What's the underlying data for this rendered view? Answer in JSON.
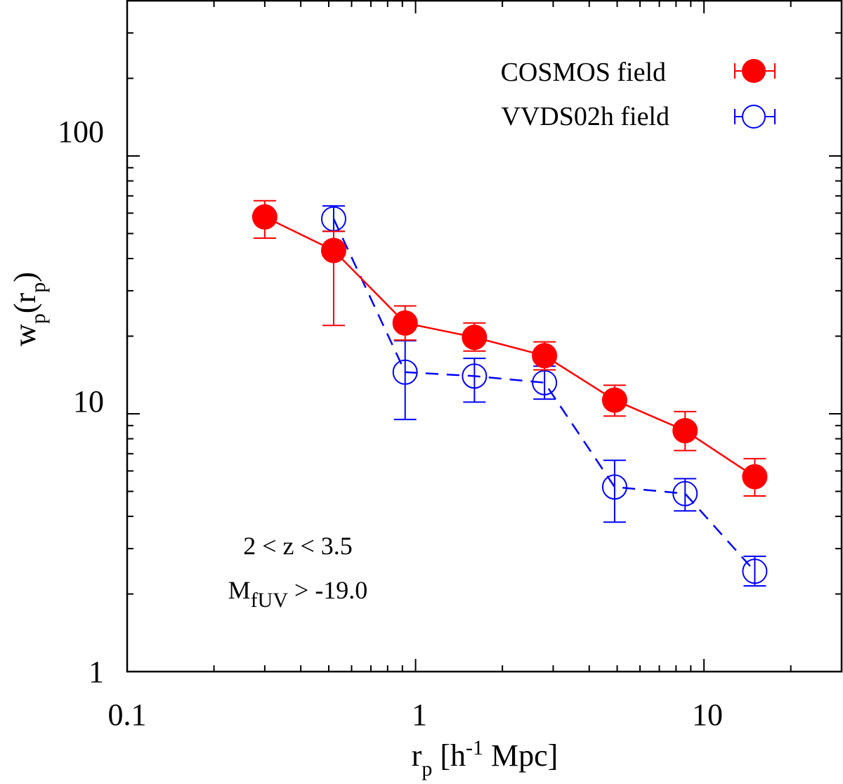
{
  "chart_data": {
    "type": "scatter",
    "x_scale": "log",
    "y_scale": "log",
    "xlim": [
      0.1,
      30
    ],
    "ylim": [
      1,
      400
    ],
    "x_ticks": [
      0.1,
      1,
      10
    ],
    "x_tick_labels": [
      "0.1",
      "1",
      "10"
    ],
    "y_ticks": [
      1,
      10,
      100
    ],
    "y_tick_labels": [
      "1",
      "10",
      "100"
    ],
    "xlabel": {
      "main": "r",
      "sub": "p",
      "rest_a": " [h",
      "sup": "-1",
      "rest_b": " Mpc]"
    },
    "ylabel": {
      "main": "w",
      "sub1": "p",
      "mid": "(r",
      "sub2": "p",
      "end": ")"
    },
    "series": [
      {
        "name": "COSMOS field",
        "color": "#ff0000",
        "marker": "filled-circle",
        "line": "solid",
        "x": [
          0.3,
          0.52,
          0.92,
          1.6,
          2.8,
          4.9,
          8.6,
          15.0
        ],
        "y": [
          58,
          43,
          22.5,
          19.8,
          16.8,
          11.3,
          8.6,
          5.7
        ],
        "y_low": [
          48,
          22,
          19.3,
          17.5,
          14.8,
          9.8,
          7.2,
          4.8
        ],
        "y_high": [
          67,
          51,
          26.2,
          22.5,
          19.0,
          12.9,
          10.2,
          6.7
        ]
      },
      {
        "name": "VVDS02h field",
        "color": "#0000ff",
        "marker": "open-circle",
        "line": "dashed",
        "x": [
          0.52,
          0.92,
          1.6,
          2.8,
          4.9,
          8.6,
          15.0
        ],
        "y": [
          57,
          14.5,
          14.0,
          13.2,
          5.2,
          4.9,
          2.45
        ],
        "y_low": [
          51,
          9.5,
          11.1,
          11.4,
          3.8,
          4.2,
          2.15
        ],
        "y_high": [
          64,
          19.2,
          16.4,
          15.3,
          6.6,
          5.6,
          2.8
        ]
      }
    ],
    "annotations": {
      "line1": "2 < z < 3.5",
      "line2_main": "M",
      "line2_sub": "fUV",
      "line2_rest": " > -19.0"
    }
  }
}
